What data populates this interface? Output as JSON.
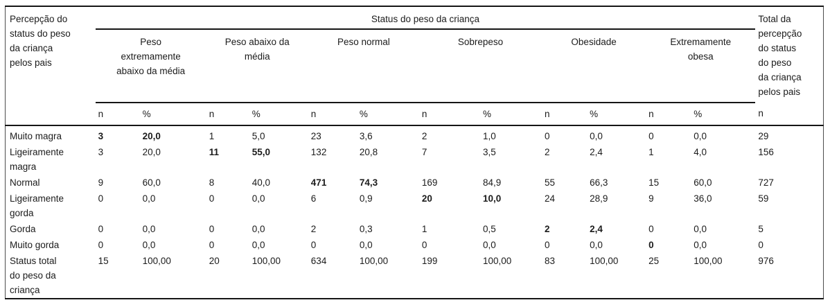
{
  "table": {
    "corner_header": "Percepção do\nstatus do peso\nda criança\npelos pais",
    "spanner_header": "Status do peso da criança",
    "total_header": "Total da\npercepção\ndo status\ndo peso\nda criança\npelos pais",
    "column_groups": [
      "Peso\nextremamente\nabaixo da média",
      "Peso abaixo da\nmédia",
      "Peso normal",
      "Sobrepeso",
      "Obesidade",
      "Extremamente\nobesa"
    ],
    "subheaders": {
      "n": "n",
      "pct": "%"
    },
    "rows": [
      {
        "label": "Muito magra",
        "values": [
          "3",
          "20,0",
          "1",
          "5,0",
          "23",
          "3,6",
          "2",
          "1,0",
          "0",
          "0,0",
          "0",
          "0,0",
          "29"
        ],
        "bold": [
          0,
          1
        ]
      },
      {
        "label": "Ligeiramente\nmagra",
        "values": [
          "3",
          "20,0",
          "11",
          "55,0",
          "132",
          "20,8",
          "7",
          "3,5",
          "2",
          "2,4",
          "1",
          "4,0",
          "156"
        ],
        "bold": [
          2,
          3
        ]
      },
      {
        "label": "Normal",
        "values": [
          "9",
          "60,0",
          "8",
          "40,0",
          "471",
          "74,3",
          "169",
          "84,9",
          "55",
          "66,3",
          "15",
          "60,0",
          "727"
        ],
        "bold": [
          4,
          5
        ]
      },
      {
        "label": "Ligeiramente\ngorda",
        "values": [
          "0",
          "0,0",
          "0",
          "0,0",
          "6",
          "0,9",
          "20",
          "10,0",
          "24",
          "28,9",
          "9",
          "36,0",
          "59"
        ],
        "bold": [
          6,
          7
        ]
      },
      {
        "label": "Gorda",
        "values": [
          "0",
          "0,0",
          "0",
          "0,0",
          "2",
          "0,3",
          "1",
          "0,5",
          "2",
          "2,4",
          "0",
          "0,0",
          "5"
        ],
        "bold": [
          8,
          9
        ]
      },
      {
        "label": "Muito gorda",
        "values": [
          "0",
          "0,0",
          "0",
          "0,0",
          "0",
          "0,0",
          "0",
          "0,0",
          "0",
          "0,0",
          "0",
          "0,0",
          "0"
        ],
        "bold": [
          10
        ]
      },
      {
        "label": "Status total\ndo peso da\ncriança",
        "values": [
          "15",
          "100,00",
          "20",
          "100,00",
          "634",
          "100,00",
          "199",
          "100,00",
          "83",
          "100,00",
          "25",
          "100,00",
          "976"
        ],
        "bold": []
      }
    ]
  }
}
